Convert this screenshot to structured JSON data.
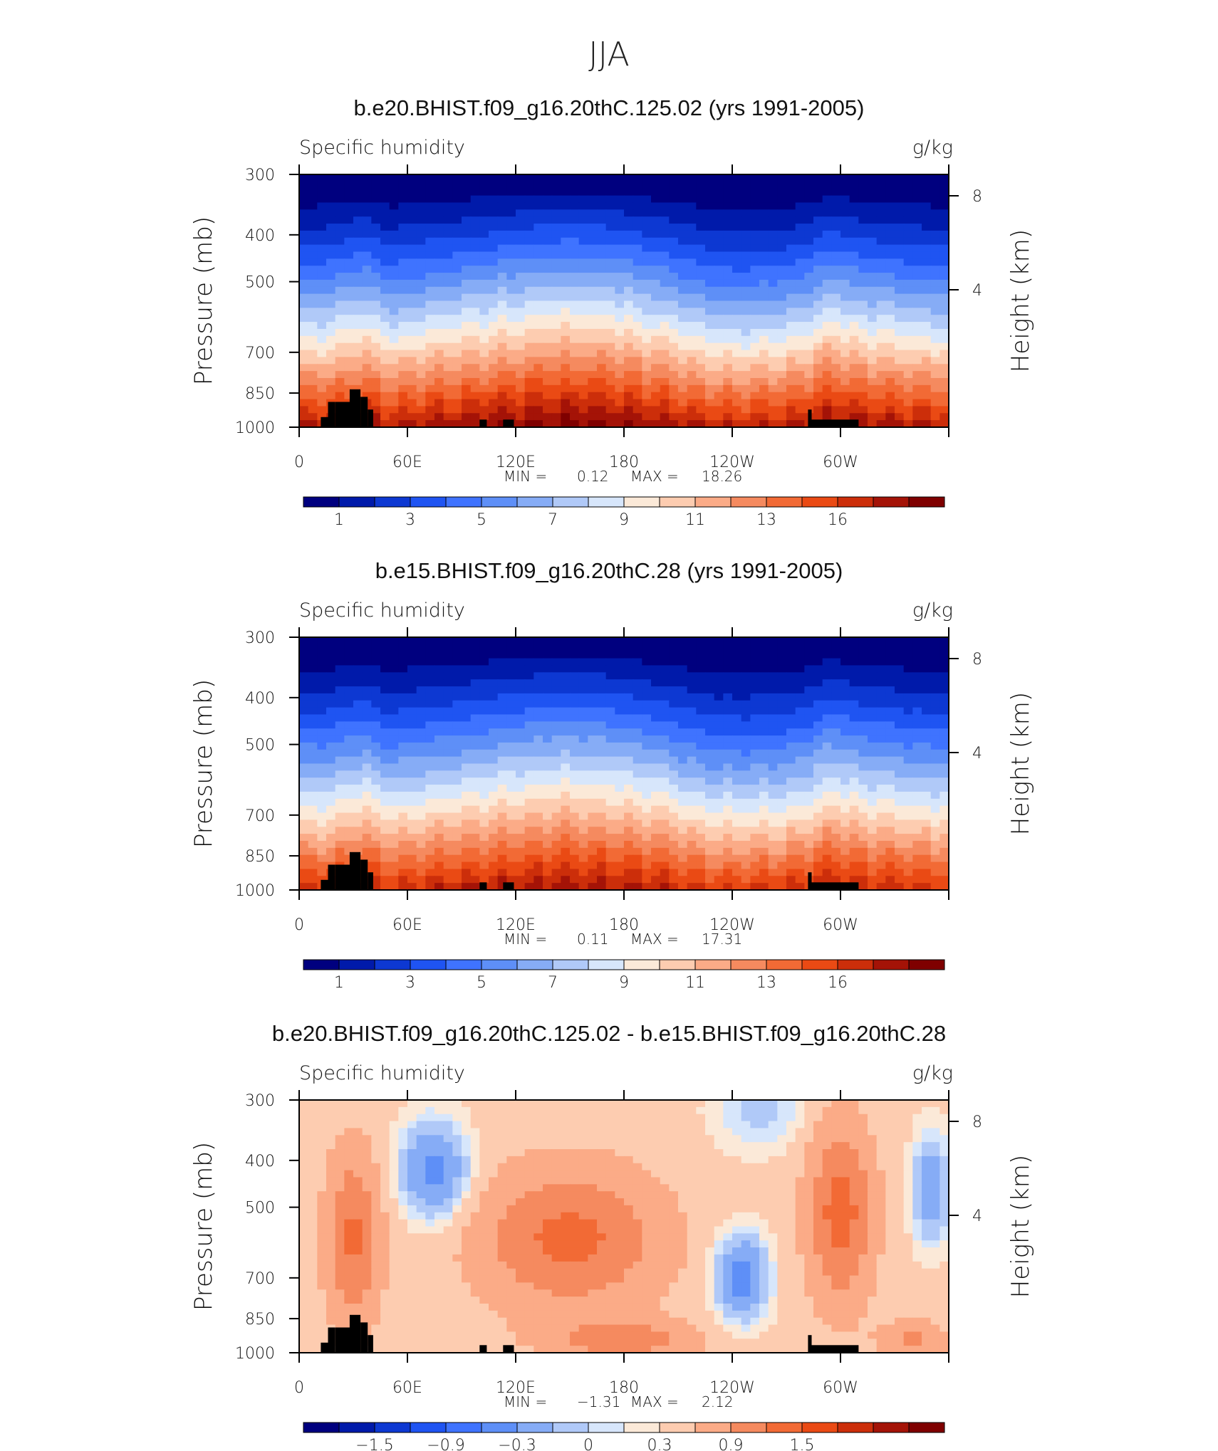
{
  "page_title": "JJA",
  "colors": {
    "seq": [
      "#00007f",
      "#001aaa",
      "#0d38d2",
      "#1f54f2",
      "#3f73ff",
      "#5e8ff7",
      "#86acf6",
      "#b0c9f8",
      "#d7e6fb",
      "#fbe9d8",
      "#fdccb0",
      "#fbab87",
      "#f58a5f",
      "#f26a35",
      "#ea4a14",
      "#cc2e0a",
      "#a41307",
      "#7f0000"
    ],
    "diff": [
      "#00007f",
      "#001aaa",
      "#0d38d2",
      "#1f54f2",
      "#3f73ff",
      "#5e8ff7",
      "#86acf6",
      "#b0c9f8",
      "#d7e6fb",
      "#fbe9d8",
      "#fdccb0",
      "#fbab87",
      "#f58a5f",
      "#f26a35",
      "#ea4a14",
      "#cc2e0a",
      "#a41307",
      "#7f0000"
    ],
    "topo": "#000000"
  },
  "panels": [
    {
      "title": "b.e20.BHIST.f09_g16.20thC.125.02 (yrs 1991-2005)",
      "left_label": "Specific humidity",
      "right_label": "g/kg",
      "ylabel": "Pressure (mb)",
      "ylabel_right": "Height (km)",
      "min_label": "MIN =",
      "min_value": "0.12",
      "max_label": "MAX =",
      "max_value": "18.26"
    },
    {
      "title": "b.e15.BHIST.f09_g16.20thC.28 (yrs 1991-2005)",
      "left_label": "Specific humidity",
      "right_label": "g/kg",
      "ylabel": "Pressure (mb)",
      "ylabel_right": "Height (km)",
      "min_label": "MIN =",
      "min_value": "0.11",
      "max_label": "MAX =",
      "max_value": "17.31"
    },
    {
      "title": "b.e20.BHIST.f09_g16.20thC.125.02 - b.e15.BHIST.f09_g16.20thC.28",
      "left_label": "Specific humidity",
      "right_label": "g/kg",
      "ylabel": "Pressure (mb)",
      "ylabel_right": "Height (km)",
      "min_label": "MIN =",
      "min_value": "−1.31",
      "max_label": "MAX =",
      "max_value": "2.12"
    }
  ],
  "chart_data": [
    {
      "type": "heatmap",
      "title": "b.e20.BHIST.f09_g16.20thC.125.02 (yrs 1991-2005)",
      "variable": "Specific humidity",
      "units": "g/kg",
      "xlabel": "",
      "ylabel": "Pressure (mb)",
      "ylabel_right": "Height (km)",
      "x_ticks": [
        "0",
        "60E",
        "120E",
        "180",
        "120W",
        "60W"
      ],
      "x_tick_values": [
        0,
        60,
        120,
        180,
        240,
        300
      ],
      "xlim": [
        0,
        360
      ],
      "y_ticks": [
        "300",
        "400",
        "500",
        "700",
        "850",
        "1000"
      ],
      "y_tick_values": [
        300,
        400,
        500,
        700,
        850,
        1000
      ],
      "ylim": [
        1000,
        300
      ],
      "y_right_ticks": [
        "8",
        "4"
      ],
      "y_right_values": [
        8,
        4
      ],
      "min": 0.12,
      "max": 18.26,
      "colorbar_labels": [
        "1",
        "3",
        "5",
        "7",
        "9",
        "11",
        "13",
        "16"
      ],
      "colorbar_levels": [
        1,
        2,
        3,
        4,
        5,
        6,
        7,
        8,
        9,
        10,
        11,
        12,
        13,
        14,
        15,
        16,
        17
      ]
    },
    {
      "type": "heatmap",
      "title": "b.e15.BHIST.f09_g16.20thC.28 (yrs 1991-2005)",
      "variable": "Specific humidity",
      "units": "g/kg",
      "xlabel": "",
      "ylabel": "Pressure (mb)",
      "ylabel_right": "Height (km)",
      "x_ticks": [
        "0",
        "60E",
        "120E",
        "180",
        "120W",
        "60W"
      ],
      "x_tick_values": [
        0,
        60,
        120,
        180,
        240,
        300
      ],
      "xlim": [
        0,
        360
      ],
      "y_ticks": [
        "300",
        "400",
        "500",
        "700",
        "850",
        "1000"
      ],
      "y_tick_values": [
        300,
        400,
        500,
        700,
        850,
        1000
      ],
      "ylim": [
        1000,
        300
      ],
      "y_right_ticks": [
        "8",
        "4"
      ],
      "y_right_values": [
        8,
        4
      ],
      "min": 0.11,
      "max": 17.31,
      "colorbar_labels": [
        "1",
        "3",
        "5",
        "7",
        "9",
        "11",
        "13",
        "16"
      ],
      "colorbar_levels": [
        1,
        2,
        3,
        4,
        5,
        6,
        7,
        8,
        9,
        10,
        11,
        12,
        13,
        14,
        15,
        16,
        17
      ]
    },
    {
      "type": "heatmap",
      "title": "b.e20.BHIST.f09_g16.20thC.125.02 - b.e15.BHIST.f09_g16.20thC.28",
      "variable": "Specific humidity",
      "units": "g/kg",
      "xlabel": "",
      "ylabel": "Pressure (mb)",
      "ylabel_right": "Height (km)",
      "x_ticks": [
        "0",
        "60E",
        "120E",
        "180",
        "120W",
        "60W"
      ],
      "x_tick_values": [
        0,
        60,
        120,
        180,
        240,
        300
      ],
      "xlim": [
        0,
        360
      ],
      "y_ticks": [
        "300",
        "400",
        "500",
        "700",
        "850",
        "1000"
      ],
      "y_tick_values": [
        300,
        400,
        500,
        700,
        850,
        1000
      ],
      "ylim": [
        1000,
        300
      ],
      "y_right_ticks": [
        "8",
        "4"
      ],
      "y_right_values": [
        8,
        4
      ],
      "min": -1.31,
      "max": 2.12,
      "colorbar_labels": [
        "−1.5",
        "−0.9",
        "−0.3",
        "0",
        "0.3",
        "0.9",
        "1.5"
      ],
      "colorbar_levels": [
        -2.1,
        -1.8,
        -1.5,
        -1.2,
        -0.9,
        -0.6,
        -0.3,
        -0.1,
        0,
        0.1,
        0.3,
        0.6,
        0.9,
        1.2,
        1.5,
        1.8,
        2.1
      ]
    }
  ]
}
